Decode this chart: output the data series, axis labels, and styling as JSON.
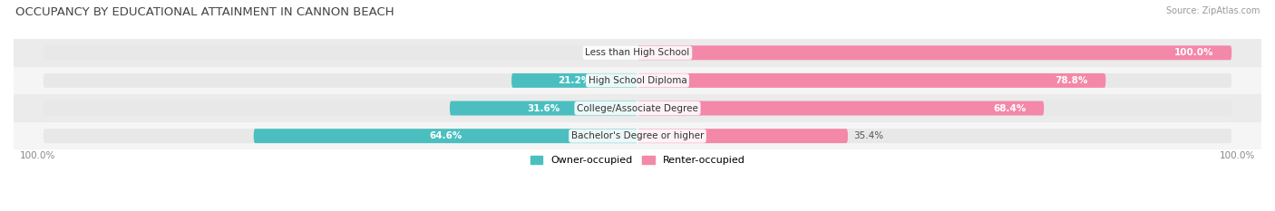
{
  "title": "OCCUPANCY BY EDUCATIONAL ATTAINMENT IN CANNON BEACH",
  "source": "Source: ZipAtlas.com",
  "categories": [
    "Less than High School",
    "High School Diploma",
    "College/Associate Degree",
    "Bachelor's Degree or higher"
  ],
  "owner_values": [
    0.0,
    21.2,
    31.6,
    64.6
  ],
  "renter_values": [
    100.0,
    78.8,
    68.4,
    35.4
  ],
  "owner_color": "#4BBFBF",
  "renter_color": "#F488A8",
  "row_bg_light": "#F5F5F5",
  "row_bg_dark": "#EBEBEB",
  "bar_bg_color": "#E8E8E8",
  "title_fontsize": 9.5,
  "label_fontsize": 7.5,
  "tick_fontsize": 7.5,
  "legend_fontsize": 8,
  "source_fontsize": 7,
  "bar_height": 0.52,
  "total_width": 100
}
